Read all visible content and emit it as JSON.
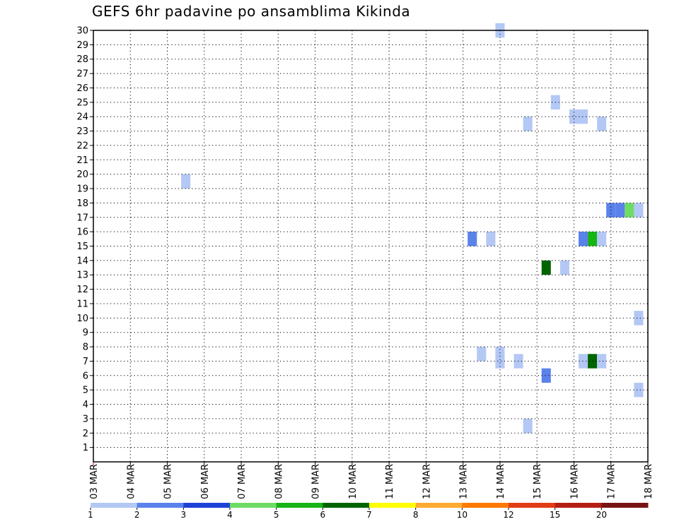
{
  "chart_data": {
    "type": "heatmap",
    "title": "GEFS 6hr padavine po ansamblima Kikinda",
    "x_tick_labels": [
      "03 MAR",
      "04 MAR",
      "05 MAR",
      "06 MAR",
      "07 MAR",
      "08 MAR",
      "09 MAR",
      "10 MAR",
      "11 MAR",
      "12 MAR",
      "13 MAR",
      "14 MAR",
      "15 MAR",
      "16 MAR",
      "17 MAR",
      "18 MAR"
    ],
    "y_tick_labels": [
      1,
      2,
      3,
      4,
      5,
      6,
      7,
      8,
      9,
      10,
      11,
      12,
      13,
      14,
      15,
      16,
      17,
      18,
      19,
      20,
      21,
      22,
      23,
      24,
      25,
      26,
      27,
      28,
      29,
      30
    ],
    "xlim_days": [
      0,
      15
    ],
    "ylim": [
      0,
      30
    ],
    "grid": true,
    "cells": [
      {
        "day": 10.25,
        "member": 15.5,
        "class": 2
      },
      {
        "day": 10.75,
        "member": 15.5,
        "class": 1
      },
      {
        "day": 10.5,
        "member": 7.5,
        "class": 1
      },
      {
        "day": 11.0,
        "member": 7.5,
        "class": 1
      },
      {
        "day": 11.0,
        "member": 7.0,
        "class": 1
      },
      {
        "day": 11.0,
        "member": 30.0,
        "class": 1
      },
      {
        "day": 11.5,
        "member": 7.0,
        "class": 1
      },
      {
        "day": 11.75,
        "member": 23.5,
        "class": 1
      },
      {
        "day": 11.75,
        "member": 2.5,
        "class": 1
      },
      {
        "day": 12.25,
        "member": 13.5,
        "class": 6
      },
      {
        "day": 12.25,
        "member": 6.0,
        "class": 2
      },
      {
        "day": 12.5,
        "member": 25.0,
        "class": 1
      },
      {
        "day": 12.75,
        "member": 13.5,
        "class": 1
      },
      {
        "day": 13.0,
        "member": 24.0,
        "class": 1
      },
      {
        "day": 13.25,
        "member": 24.0,
        "class": 1
      },
      {
        "day": 13.25,
        "member": 15.5,
        "class": 2
      },
      {
        "day": 13.5,
        "member": 15.5,
        "class": 5
      },
      {
        "day": 13.75,
        "member": 15.5,
        "class": 1
      },
      {
        "day": 13.25,
        "member": 7.0,
        "class": 1
      },
      {
        "day": 13.5,
        "member": 7.0,
        "class": 6
      },
      {
        "day": 13.75,
        "member": 7.0,
        "class": 1
      },
      {
        "day": 13.75,
        "member": 23.5,
        "class": 1
      },
      {
        "day": 14.0,
        "member": 17.5,
        "class": 2
      },
      {
        "day": 14.25,
        "member": 17.5,
        "class": 2
      },
      {
        "day": 14.5,
        "member": 17.5,
        "class": 4
      },
      {
        "day": 14.75,
        "member": 17.5,
        "class": 1
      },
      {
        "day": 14.75,
        "member": 10.0,
        "class": 1
      },
      {
        "day": 14.75,
        "member": 5.0,
        "class": 1
      },
      {
        "day": 2.5,
        "member": 19.5,
        "class": 1
      }
    ],
    "colorbar": {
      "labels": [
        "1",
        "2",
        "3",
        "4",
        "5",
        "6",
        "7",
        "8",
        "10",
        "12",
        "15",
        "20"
      ],
      "colors": [
        "#b4c8f5",
        "#5a82eb",
        "#1e41d7",
        "#6edc64",
        "#16b414",
        "#006400",
        "#ffff00",
        "#ffaa32",
        "#ff7800",
        "#e13c14",
        "#b41e14",
        "#781414"
      ]
    }
  }
}
